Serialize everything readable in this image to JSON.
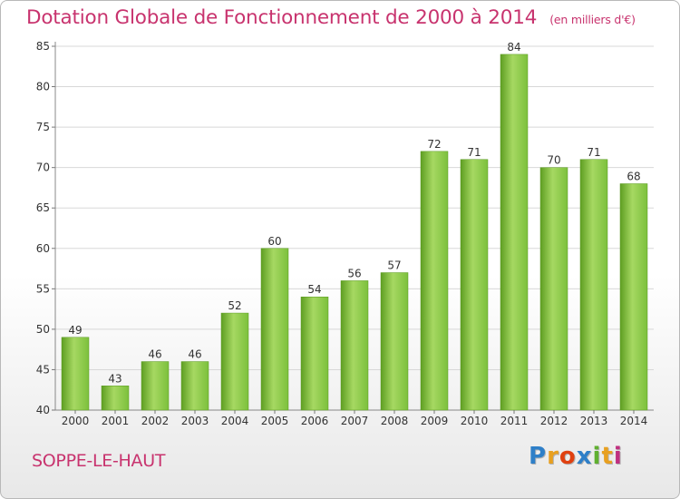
{
  "header": {
    "title": "Dotation Globale de Fonctionnement de 2000 à 2014",
    "unit": "(en milliers d'€)"
  },
  "footer": {
    "commune": "SOPPE-LE-HAUT",
    "logo_letters": [
      "P",
      "r",
      "o",
      "x",
      "i",
      "t",
      "i"
    ],
    "logo_colors": [
      "#2e7fc8",
      "#e8a020",
      "#e04010",
      "#2e7fc8",
      "#60b030",
      "#e8a020",
      "#c03080"
    ]
  },
  "chart_data": {
    "type": "bar",
    "categories": [
      "2000",
      "2001",
      "2002",
      "2003",
      "2004",
      "2005",
      "2006",
      "2007",
      "2008",
      "2009",
      "2010",
      "2011",
      "2012",
      "2013",
      "2014"
    ],
    "values": [
      49,
      43,
      46,
      46,
      52,
      60,
      54,
      56,
      57,
      72,
      71,
      84,
      70,
      71,
      68
    ],
    "ylim": [
      40,
      85
    ],
    "yticks": [
      40,
      45,
      50,
      55,
      60,
      65,
      70,
      75,
      80,
      85
    ],
    "grid": true,
    "bar_color": "#7cc03c",
    "bar_color_light": "#a6d862",
    "bar_color_dark": "#5e9e22"
  }
}
